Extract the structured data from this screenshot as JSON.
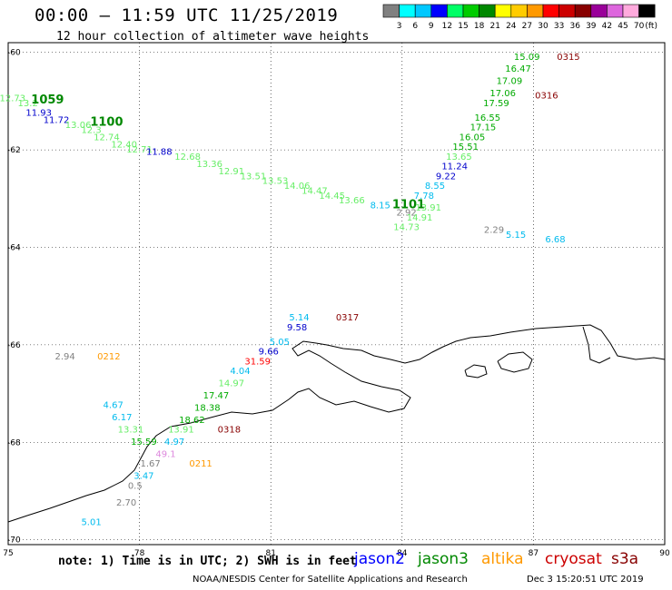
{
  "header": {
    "title": "00:00 – 11:59 UTC 11/25/2019",
    "subtitle": "12 hour collection of altimeter wave heights"
  },
  "scale": {
    "labels": [
      "3",
      "6",
      "9",
      "12",
      "15",
      "18",
      "21",
      "24",
      "27",
      "30",
      "33",
      "36",
      "39",
      "42",
      "45",
      "70",
      "(ft)"
    ],
    "colors": [
      "#808080",
      "#00ffff",
      "#00c8ff",
      "#0000ff",
      "#00ff66",
      "#00cc00",
      "#008800",
      "#ffff00",
      "#ffcc00",
      "#ff9900",
      "#ff0000",
      "#cc0000",
      "#880000",
      "#990099",
      "#dd66dd",
      "#ffaadd",
      "#000000"
    ]
  },
  "axes": {
    "x_ticks": [
      "75",
      "78",
      "81",
      "84",
      "87",
      "90"
    ],
    "y_ticks": [
      "-60",
      "-62",
      "-64",
      "-66",
      "-68",
      "-70"
    ]
  },
  "map_labels": [
    {
      "t": "12.73",
      "c": "#66ee66",
      "lon": 75.1,
      "lat": -61.0
    },
    {
      "t": "13.2",
      "c": "#66ee66",
      "lon": 75.45,
      "lat": -61.1
    },
    {
      "t": "1059",
      "c": "#008800",
      "lon": 75.9,
      "lat": -61.05,
      "b": true
    },
    {
      "t": "11.93",
      "c": "#0000cc",
      "lon": 75.7,
      "lat": -61.3
    },
    {
      "t": "11.72",
      "c": "#0000cc",
      "lon": 76.1,
      "lat": -61.45
    },
    {
      "t": "13.06",
      "c": "#66ee66",
      "lon": 76.6,
      "lat": -61.55
    },
    {
      "t": "1100",
      "c": "#008800",
      "lon": 77.25,
      "lat": -61.5,
      "b": true
    },
    {
      "t": "12.3",
      "c": "#66ee66",
      "lon": 76.9,
      "lat": -61.65
    },
    {
      "t": "12.74",
      "c": "#66ee66",
      "lon": 77.25,
      "lat": -61.8
    },
    {
      "t": "12.40",
      "c": "#66ee66",
      "lon": 77.65,
      "lat": -61.95
    },
    {
      "t": "12.71",
      "c": "#66ee66",
      "lon": 78.0,
      "lat": -62.05
    },
    {
      "t": "11.88",
      "c": "#0000cc",
      "lon": 78.45,
      "lat": -62.1
    },
    {
      "t": "12.68",
      "c": "#66ee66",
      "lon": 79.1,
      "lat": -62.2
    },
    {
      "t": "13.36",
      "c": "#66ee66",
      "lon": 79.6,
      "lat": -62.35
    },
    {
      "t": "12.91",
      "c": "#66ee66",
      "lon": 80.1,
      "lat": -62.5
    },
    {
      "t": "13.51",
      "c": "#66ee66",
      "lon": 80.6,
      "lat": -62.6
    },
    {
      "t": "13.53",
      "c": "#66ee66",
      "lon": 81.1,
      "lat": -62.7
    },
    {
      "t": "14.06",
      "c": "#66ee66",
      "lon": 81.6,
      "lat": -62.8
    },
    {
      "t": "14.47",
      "c": "#66ee66",
      "lon": 82.0,
      "lat": -62.9
    },
    {
      "t": "14.45",
      "c": "#66ee66",
      "lon": 82.4,
      "lat": -63.0
    },
    {
      "t": "13.66",
      "c": "#66ee66",
      "lon": 82.85,
      "lat": -63.1
    },
    {
      "t": "8.15",
      "c": "#00bbee",
      "lon": 83.5,
      "lat": -63.2
    },
    {
      "t": "1101",
      "c": "#008800",
      "lon": 84.15,
      "lat": -63.2,
      "b": true
    },
    {
      "t": "2.92",
      "c": "#808080",
      "lon": 84.1,
      "lat": -63.35
    },
    {
      "t": "13.91",
      "c": "#66ee66",
      "lon": 84.6,
      "lat": -63.25
    },
    {
      "t": "14.91",
      "c": "#66ee66",
      "lon": 84.4,
      "lat": -63.45
    },
    {
      "t": "14.73",
      "c": "#66ee66",
      "lon": 84.1,
      "lat": -63.65
    },
    {
      "t": "7.78",
      "c": "#00bbee",
      "lon": 84.5,
      "lat": -63.0
    },
    {
      "t": "8.55",
      "c": "#00bbee",
      "lon": 84.75,
      "lat": -62.8
    },
    {
      "t": "9.22",
      "c": "#0000cc",
      "lon": 85.0,
      "lat": -62.6
    },
    {
      "t": "11.24",
      "c": "#0000cc",
      "lon": 85.2,
      "lat": -62.4
    },
    {
      "t": "13.65",
      "c": "#66ee66",
      "lon": 85.3,
      "lat": -62.2
    },
    {
      "t": "15.51",
      "c": "#00aa00",
      "lon": 85.45,
      "lat": -62.0
    },
    {
      "t": "16.05",
      "c": "#00aa00",
      "lon": 85.6,
      "lat": -61.8
    },
    {
      "t": "17.15",
      "c": "#00aa00",
      "lon": 85.85,
      "lat": -61.6
    },
    {
      "t": "16.55",
      "c": "#00aa00",
      "lon": 85.95,
      "lat": -61.4
    },
    {
      "t": "17.59",
      "c": "#00aa00",
      "lon": 86.15,
      "lat": -61.1
    },
    {
      "t": "17.06",
      "c": "#00aa00",
      "lon": 86.3,
      "lat": -60.9
    },
    {
      "t": "17.09",
      "c": "#00aa00",
      "lon": 86.45,
      "lat": -60.65
    },
    {
      "t": "16.47",
      "c": "#00aa00",
      "lon": 86.65,
      "lat": -60.4
    },
    {
      "t": "15.09",
      "c": "#00aa00",
      "lon": 86.85,
      "lat": -60.15
    },
    {
      "t": "0315",
      "c": "#880000",
      "lon": 87.8,
      "lat": -60.15
    },
    {
      "t": "0316",
      "c": "#880000",
      "lon": 87.3,
      "lat": -60.95
    },
    {
      "t": "2.29",
      "c": "#808080",
      "lon": 86.1,
      "lat": -63.7
    },
    {
      "t": "5.15",
      "c": "#00bbee",
      "lon": 86.6,
      "lat": -63.8
    },
    {
      "t": "6.68",
      "c": "#00bbee",
      "lon": 87.5,
      "lat": -63.9
    },
    {
      "t": "5.14",
      "c": "#00bbee",
      "lon": 81.65,
      "lat": -65.5
    },
    {
      "t": "0317",
      "c": "#880000",
      "lon": 82.75,
      "lat": -65.5
    },
    {
      "t": "9.58",
      "c": "#0000cc",
      "lon": 81.6,
      "lat": -65.7
    },
    {
      "t": "5.05",
      "c": "#00bbee",
      "lon": 81.2,
      "lat": -66.0
    },
    {
      "t": "9.66",
      "c": "#0000cc",
      "lon": 80.95,
      "lat": -66.2
    },
    {
      "t": "31.59",
      "c": "#ff0000",
      "lon": 80.7,
      "lat": -66.4
    },
    {
      "t": "4.04",
      "c": "#00bbee",
      "lon": 80.3,
      "lat": -66.6
    },
    {
      "t": "14.97",
      "c": "#66ee66",
      "lon": 80.1,
      "lat": -66.85
    },
    {
      "t": "17.47",
      "c": "#00aa00",
      "lon": 79.75,
      "lat": -67.1
    },
    {
      "t": "18.38",
      "c": "#00aa00",
      "lon": 79.55,
      "lat": -67.35
    },
    {
      "t": "18.62",
      "c": "#00aa00",
      "lon": 79.2,
      "lat": -67.6
    },
    {
      "t": "0318",
      "c": "#880000",
      "lon": 80.05,
      "lat": -67.8
    },
    {
      "t": "13.91",
      "c": "#66ee66",
      "lon": 78.95,
      "lat": -67.8
    },
    {
      "t": "4.67",
      "c": "#00bbee",
      "lon": 77.4,
      "lat": -67.3
    },
    {
      "t": "6.17",
      "c": "#00bbee",
      "lon": 77.6,
      "lat": -67.55
    },
    {
      "t": "13.31",
      "c": "#66ee66",
      "lon": 77.8,
      "lat": -67.8
    },
    {
      "t": "15.59",
      "c": "#00aa00",
      "lon": 78.1,
      "lat": -68.05
    },
    {
      "t": "4.97",
      "c": "#00bbee",
      "lon": 78.8,
      "lat": -68.05
    },
    {
      "t": "49.1",
      "c": "#dd88dd",
      "lon": 78.6,
      "lat": -68.3
    },
    {
      "t": "0211",
      "c": "#ff9900",
      "lon": 79.4,
      "lat": -68.5
    },
    {
      "t": "1.67",
      "c": "#808080",
      "lon": 78.25,
      "lat": -68.5
    },
    {
      "t": "3.47",
      "c": "#00bbee",
      "lon": 78.1,
      "lat": -68.75
    },
    {
      "t": "0.5",
      "c": "#808080",
      "lon": 77.9,
      "lat": -68.95
    },
    {
      "t": "2.70",
      "c": "#808080",
      "lon": 77.7,
      "lat": -69.3
    },
    {
      "t": "5.01",
      "c": "#00bbee",
      "lon": 76.9,
      "lat": -69.7
    },
    {
      "t": "2.94",
      "c": "#808080",
      "lon": 76.3,
      "lat": -66.3
    },
    {
      "t": "0212",
      "c": "#ff9900",
      "lon": 77.3,
      "lat": -66.3
    }
  ],
  "footer": {
    "note": "note: 1) Time is in UTC; 2) SWH is in feet",
    "satellites": [
      {
        "name": "jason2",
        "color": "#0000ff"
      },
      {
        "name": "jason3",
        "color": "#008800"
      },
      {
        "name": "altika",
        "color": "#ff9900"
      },
      {
        "name": "cryosat",
        "color": "#cc0000"
      },
      {
        "name": "s3a",
        "color": "#880000"
      }
    ],
    "credit": "NOAA/NESDIS Center for Satellite Applications and Research",
    "date": "Dec  3 15:20:51 UTC 2019"
  }
}
